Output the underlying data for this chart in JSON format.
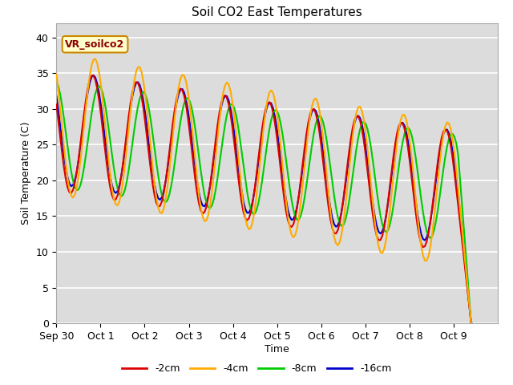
{
  "title": "Soil CO2 East Temperatures",
  "xlabel": "Time",
  "ylabel": "Soil Temperature (C)",
  "ylim": [
    0,
    42
  ],
  "yticks": [
    0,
    5,
    10,
    15,
    20,
    25,
    30,
    35,
    40
  ],
  "bg_color": "#dcdcdc",
  "fig_color": "#ffffff",
  "annotation_text": "VR_soilco2",
  "annotation_box_color": "#ffffcc",
  "annotation_box_edge": "#cc8800",
  "legend_labels": [
    "-2cm",
    "-4cm",
    "-8cm",
    "-16cm"
  ],
  "legend_colors": [
    "#dd0000",
    "#ffaa00",
    "#00cc00",
    "#0000cc"
  ],
  "line_colors": {
    "2cm": "#dd0000",
    "4cm": "#ffaa00",
    "8cm": "#00cc00",
    "16cm": "#0000cc"
  },
  "xticklabels": [
    "Sep 30",
    "Oct 1",
    "Oct 2",
    "Oct 3",
    "Oct 4",
    "Oct 5",
    "Oct 6",
    "Oct 7",
    "Oct 8",
    "Oct 9"
  ],
  "num_days": 10
}
